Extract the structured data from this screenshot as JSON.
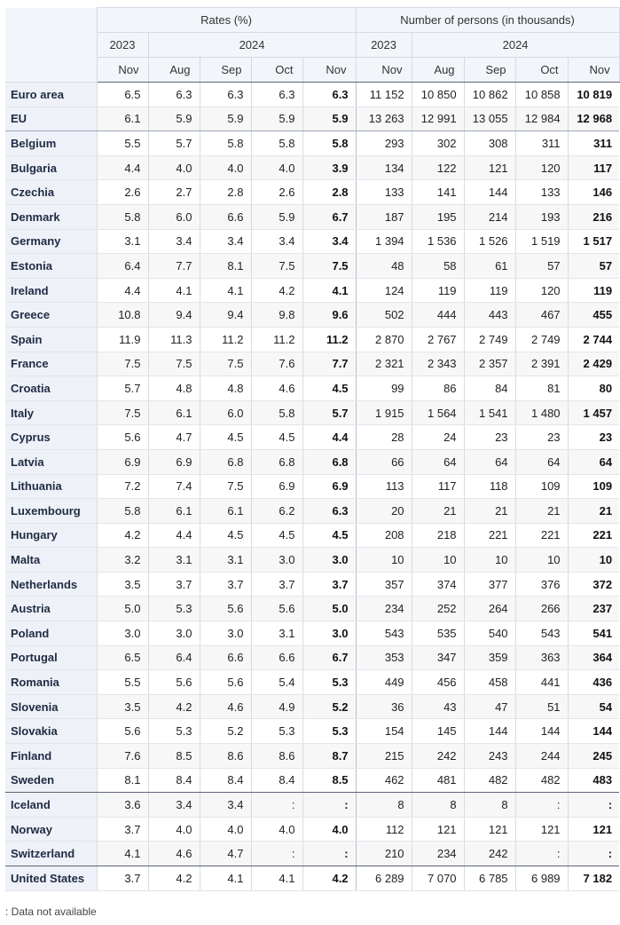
{
  "header": {
    "rates": "Rates (%)",
    "persons": "Number of persons (in thousands)",
    "y2023": "2023",
    "y2024": "2024",
    "months": [
      "Nov",
      "Aug",
      "Sep",
      "Oct",
      "Nov",
      "Nov",
      "Aug",
      "Sep",
      "Oct",
      "Nov"
    ]
  },
  "rows": [
    {
      "name": "Euro area",
      "group": "agg",
      "vals": [
        "6.5",
        "6.3",
        "6.3",
        "6.3",
        "6.3",
        "11 152",
        "10 850",
        "10 862",
        "10 858",
        "10 819"
      ]
    },
    {
      "name": "EU",
      "group": "agg-end",
      "vals": [
        "6.1",
        "5.9",
        "5.9",
        "5.9",
        "5.9",
        "13 263",
        "12 991",
        "13 055",
        "12 984",
        "12 968"
      ]
    },
    {
      "name": "Belgium",
      "vals": [
        "5.5",
        "5.7",
        "5.8",
        "5.8",
        "5.8",
        "293",
        "302",
        "308",
        "311",
        "311"
      ]
    },
    {
      "name": "Bulgaria",
      "vals": [
        "4.4",
        "4.0",
        "4.0",
        "4.0",
        "3.9",
        "134",
        "122",
        "121",
        "120",
        "117"
      ]
    },
    {
      "name": "Czechia",
      "vals": [
        "2.6",
        "2.7",
        "2.8",
        "2.6",
        "2.8",
        "133",
        "141",
        "144",
        "133",
        "146"
      ]
    },
    {
      "name": "Denmark",
      "vals": [
        "5.8",
        "6.0",
        "6.6",
        "5.9",
        "6.7",
        "187",
        "195",
        "214",
        "193",
        "216"
      ]
    },
    {
      "name": "Germany",
      "vals": [
        "3.1",
        "3.4",
        "3.4",
        "3.4",
        "3.4",
        "1 394",
        "1 536",
        "1 526",
        "1 519",
        "1 517"
      ]
    },
    {
      "name": "Estonia",
      "vals": [
        "6.4",
        "7.7",
        "8.1",
        "7.5",
        "7.5",
        "48",
        "58",
        "61",
        "57",
        "57"
      ]
    },
    {
      "name": "Ireland",
      "vals": [
        "4.4",
        "4.1",
        "4.1",
        "4.2",
        "4.1",
        "124",
        "119",
        "119",
        "120",
        "119"
      ]
    },
    {
      "name": "Greece",
      "vals": [
        "10.8",
        "9.4",
        "9.4",
        "9.8",
        "9.6",
        "502",
        "444",
        "443",
        "467",
        "455"
      ]
    },
    {
      "name": "Spain",
      "vals": [
        "11.9",
        "11.3",
        "11.2",
        "11.2",
        "11.2",
        "2 870",
        "2 767",
        "2 749",
        "2 749",
        "2 744"
      ]
    },
    {
      "name": "France",
      "vals": [
        "7.5",
        "7.5",
        "7.5",
        "7.6",
        "7.7",
        "2 321",
        "2 343",
        "2 357",
        "2 391",
        "2 429"
      ]
    },
    {
      "name": "Croatia",
      "vals": [
        "5.7",
        "4.8",
        "4.8",
        "4.6",
        "4.5",
        "99",
        "86",
        "84",
        "81",
        "80"
      ]
    },
    {
      "name": "Italy",
      "vals": [
        "7.5",
        "6.1",
        "6.0",
        "5.8",
        "5.7",
        "1 915",
        "1 564",
        "1 541",
        "1 480",
        "1 457"
      ]
    },
    {
      "name": "Cyprus",
      "vals": [
        "5.6",
        "4.7",
        "4.5",
        "4.5",
        "4.4",
        "28",
        "24",
        "23",
        "23",
        "23"
      ]
    },
    {
      "name": "Latvia",
      "vals": [
        "6.9",
        "6.9",
        "6.8",
        "6.8",
        "6.8",
        "66",
        "64",
        "64",
        "64",
        "64"
      ]
    },
    {
      "name": "Lithuania",
      "vals": [
        "7.2",
        "7.4",
        "7.5",
        "6.9",
        "6.9",
        "113",
        "117",
        "118",
        "109",
        "109"
      ]
    },
    {
      "name": "Luxembourg",
      "vals": [
        "5.8",
        "6.1",
        "6.1",
        "6.2",
        "6.3",
        "20",
        "21",
        "21",
        "21",
        "21"
      ]
    },
    {
      "name": "Hungary",
      "vals": [
        "4.2",
        "4.4",
        "4.5",
        "4.5",
        "4.5",
        "208",
        "218",
        "221",
        "221",
        "221"
      ]
    },
    {
      "name": "Malta",
      "vals": [
        "3.2",
        "3.1",
        "3.1",
        "3.0",
        "3.0",
        "10",
        "10",
        "10",
        "10",
        "10"
      ]
    },
    {
      "name": "Netherlands",
      "vals": [
        "3.5",
        "3.7",
        "3.7",
        "3.7",
        "3.7",
        "357",
        "374",
        "377",
        "376",
        "372"
      ]
    },
    {
      "name": "Austria",
      "vals": [
        "5.0",
        "5.3",
        "5.6",
        "5.6",
        "5.0",
        "234",
        "252",
        "264",
        "266",
        "237"
      ]
    },
    {
      "name": "Poland",
      "vals": [
        "3.0",
        "3.0",
        "3.0",
        "3.1",
        "3.0",
        "543",
        "535",
        "540",
        "543",
        "541"
      ]
    },
    {
      "name": "Portugal",
      "vals": [
        "6.5",
        "6.4",
        "6.6",
        "6.6",
        "6.7",
        "353",
        "347",
        "359",
        "363",
        "364"
      ]
    },
    {
      "name": "Romania",
      "vals": [
        "5.5",
        "5.6",
        "5.6",
        "5.4",
        "5.3",
        "449",
        "456",
        "458",
        "441",
        "436"
      ]
    },
    {
      "name": "Slovenia",
      "vals": [
        "3.5",
        "4.2",
        "4.6",
        "4.9",
        "5.2",
        "36",
        "43",
        "47",
        "51",
        "54"
      ]
    },
    {
      "name": "Slovakia",
      "vals": [
        "5.6",
        "5.3",
        "5.2",
        "5.3",
        "5.3",
        "154",
        "145",
        "144",
        "144",
        "144"
      ]
    },
    {
      "name": "Finland",
      "vals": [
        "7.6",
        "8.5",
        "8.6",
        "8.6",
        "8.7",
        "215",
        "242",
        "243",
        "244",
        "245"
      ]
    },
    {
      "name": "Sweden",
      "group": "eu-end",
      "vals": [
        "8.1",
        "8.4",
        "8.4",
        "8.4",
        "8.5",
        "462",
        "481",
        "482",
        "482",
        "483"
      ]
    },
    {
      "name": "Iceland",
      "vals": [
        "3.6",
        "3.4",
        "3.4",
        ":",
        ":",
        "8",
        "8",
        "8",
        ":",
        ":"
      ]
    },
    {
      "name": "Norway",
      "vals": [
        "3.7",
        "4.0",
        "4.0",
        "4.0",
        "4.0",
        "112",
        "121",
        "121",
        "121",
        "121"
      ]
    },
    {
      "name": "Switzerland",
      "group": "efta-end",
      "vals": [
        "4.1",
        "4.6",
        "4.7",
        ":",
        ":",
        "210",
        "234",
        "242",
        ":",
        ":"
      ]
    },
    {
      "name": "United States",
      "vals": [
        "3.7",
        "4.2",
        "4.1",
        "4.1",
        "4.2",
        "6 289",
        "7 070",
        "6 785",
        "6 989",
        "7 182"
      ]
    }
  ],
  "footnote": ": Data not available"
}
